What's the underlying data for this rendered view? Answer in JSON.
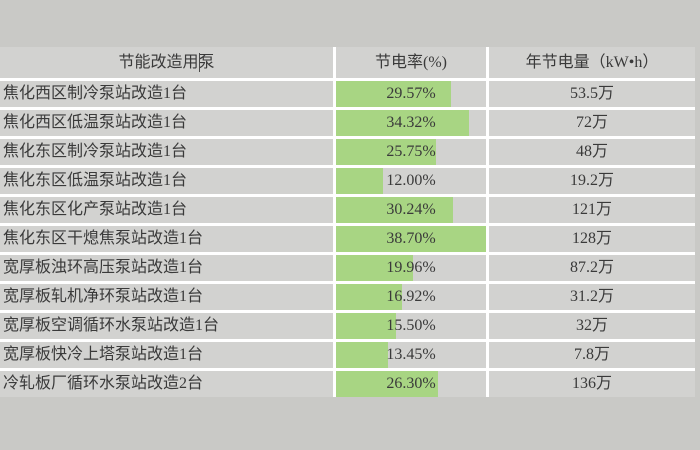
{
  "chart_data": {
    "type": "bar",
    "title": "",
    "categories": [
      "焦化西区制冷泵站改造1台",
      "焦化西区低温泵站改造1台",
      "焦化东区制冷泵站改造1台",
      "焦化东区低温泵站改造1台",
      "焦化东区化产泵站改造1台",
      "焦化东区干熄焦泵站改造1台",
      "宽厚板浊环高压泵站改造1台",
      "宽厚板轧机净环泵站改造1台",
      "宽厚板空调循环水泵站改造1台",
      "宽厚板快冷上塔泵站改造1台",
      "冷轧板厂循环水泵站改造2台"
    ],
    "series": [
      {
        "name": "节电率(%)",
        "values": [
          29.57,
          34.32,
          25.75,
          12.0,
          30.24,
          38.7,
          19.96,
          16.92,
          15.5,
          13.45,
          26.3
        ]
      },
      {
        "name": "年节电量（kW•h）万",
        "values": [
          53.5,
          72,
          48,
          19.2,
          121,
          128,
          87.2,
          31.2,
          32,
          7.8,
          136
        ]
      }
    ],
    "bar_scale_max": 38.7,
    "legend_position": "none",
    "grid": false
  },
  "table": {
    "header": {
      "pump_label": "节能改造用泵",
      "rate_label": "节电率(%)",
      "annual_label": "年节电量（kW•h）"
    },
    "bar": {
      "color": "#a8d583",
      "max_percent": 38.7
    },
    "rows": [
      {
        "pump": "焦化西区制冷泵站改造1台",
        "rate": "29.57%",
        "rate_value": 29.57,
        "annual": "53.5万"
      },
      {
        "pump": "焦化西区低温泵站改造1台",
        "rate": "34.32%",
        "rate_value": 34.32,
        "annual": "72万"
      },
      {
        "pump": "焦化东区制冷泵站改造1台",
        "rate": "25.75%",
        "rate_value": 25.75,
        "annual": "48万"
      },
      {
        "pump": "焦化东区低温泵站改造1台",
        "rate": "12.00%",
        "rate_value": 12.0,
        "annual": "19.2万"
      },
      {
        "pump": "焦化东区化产泵站改造1台",
        "rate": "30.24%",
        "rate_value": 30.24,
        "annual": "121万"
      },
      {
        "pump": "焦化东区干熄焦泵站改造1台",
        "rate": "38.70%",
        "rate_value": 38.7,
        "annual": "128万"
      },
      {
        "pump": "宽厚板浊环高压泵站改造1台",
        "rate": "19.96%",
        "rate_value": 19.96,
        "annual": "87.2万"
      },
      {
        "pump": "宽厚板轧机净环泵站改造1台",
        "rate": "16.92%",
        "rate_value": 16.92,
        "annual": "31.2万"
      },
      {
        "pump": "宽厚板空调循环水泵站改造1台",
        "rate": "15.50%",
        "rate_value": 15.5,
        "annual": "32万"
      },
      {
        "pump": "宽厚板快冷上塔泵站改造1台",
        "rate": "13.45%",
        "rate_value": 13.45,
        "annual": "7.8万"
      },
      {
        "pump": "冷轧板厂循环水泵站改造2台",
        "rate": "26.30%",
        "rate_value": 26.3,
        "annual": "136万"
      }
    ]
  }
}
